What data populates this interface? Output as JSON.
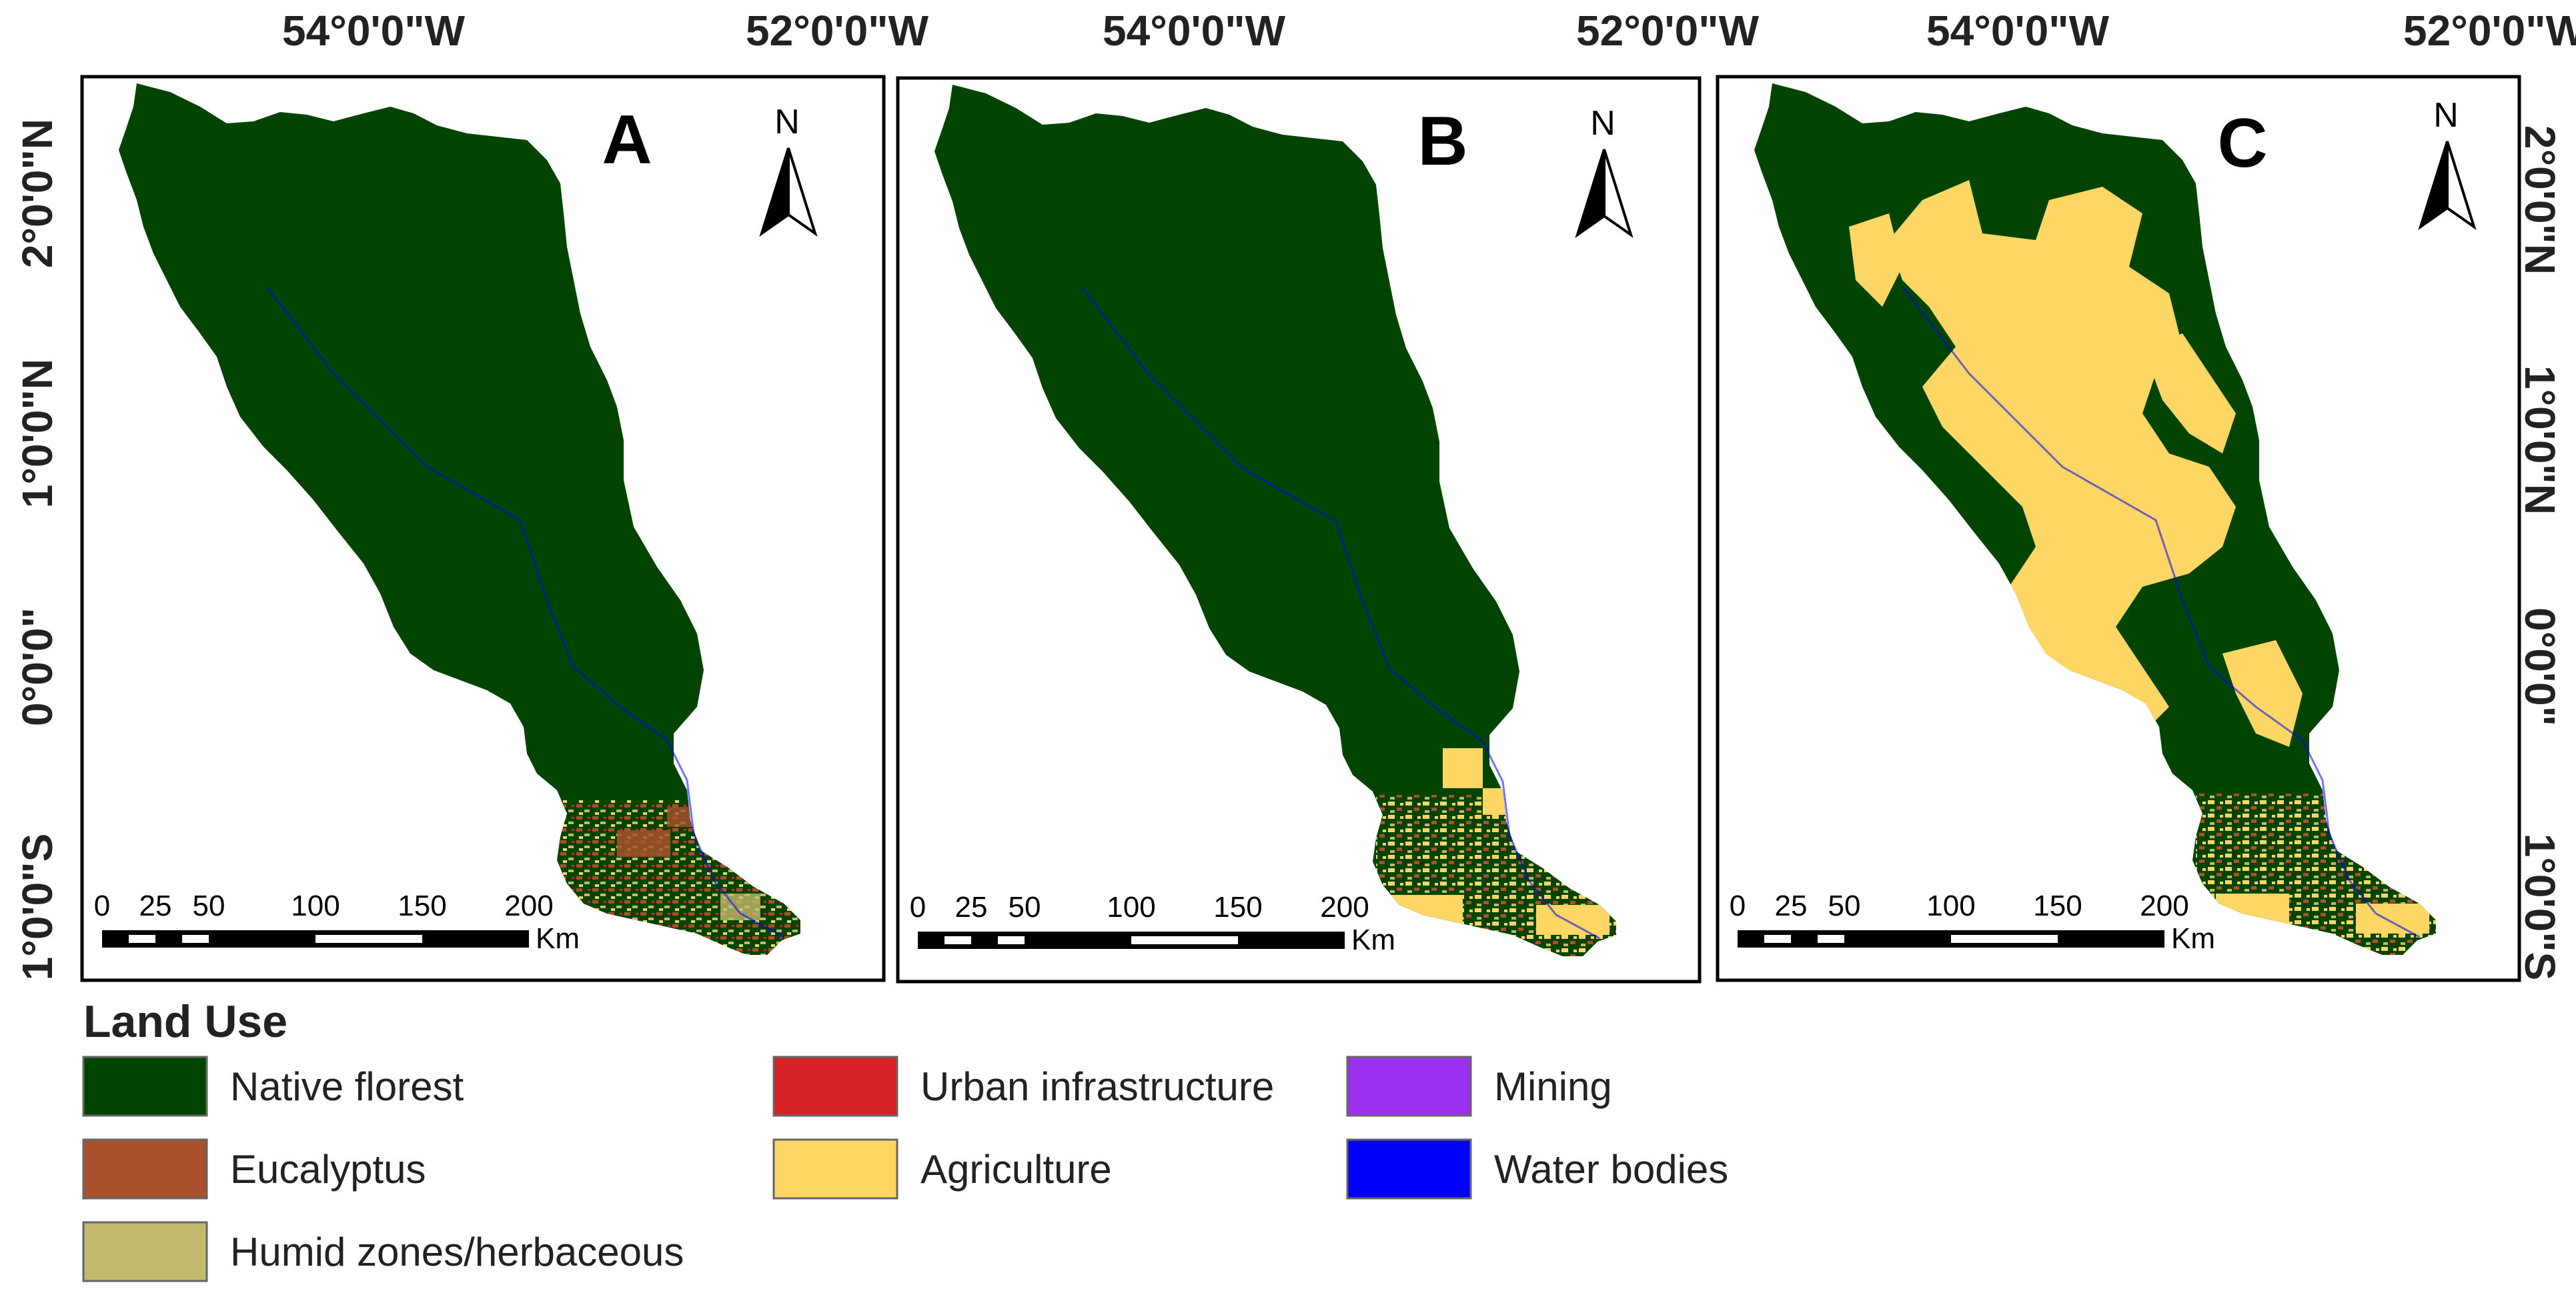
{
  "colors": {
    "native_florest": "#004400",
    "eucalyptus": "#a8512a",
    "humid_zones": "#c2b96c",
    "urban_infrastructure": "#d42226",
    "agriculture": "#fdd663",
    "mining": "#9b30f0",
    "water_bodies": "#0000ff"
  },
  "coords": {
    "top": [
      "54°0'0\"W",
      "52°0'0\"W"
    ],
    "side": [
      "2°0'0\"N",
      "1°0'0\"N",
      "0°0'0\"",
      "1°0'0\"S"
    ]
  },
  "north_label": "N",
  "scale": {
    "ticks": [
      "0",
      "25",
      "50",
      "100",
      "150",
      "200"
    ],
    "unit": "Km"
  },
  "panels": [
    {
      "label": "A"
    },
    {
      "label": "B"
    },
    {
      "label": "C"
    }
  ],
  "legend": {
    "title": "Land Use",
    "items": [
      {
        "label": "Native florest"
      },
      {
        "label": "Eucalyptus"
      },
      {
        "label": "Humid zones/herbaceous"
      },
      {
        "label": "Urban infrastructure"
      },
      {
        "label": "Agriculture"
      },
      {
        "label": "Mining"
      },
      {
        "label": "Water bodies"
      }
    ]
  }
}
